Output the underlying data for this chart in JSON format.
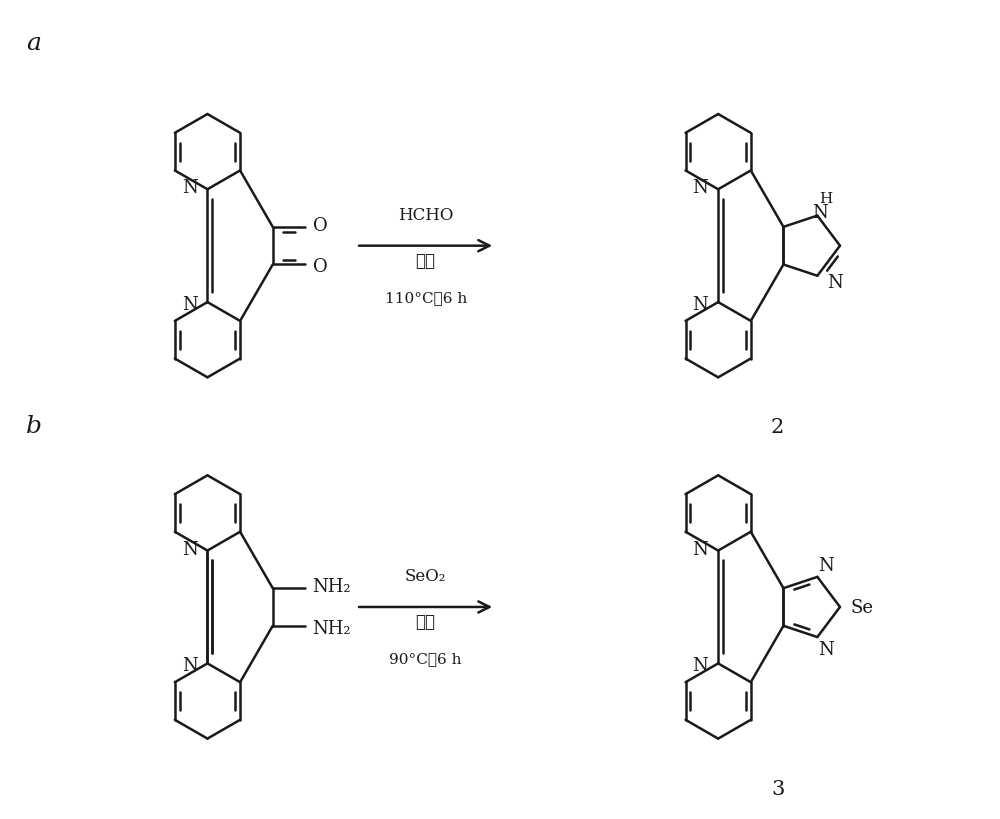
{
  "bg_color": "#ffffff",
  "line_color": "#1a1a1a",
  "label_a": "a",
  "label_b": "b",
  "label_2": "2",
  "label_3": "3",
  "reaction_a_above": "HCHO",
  "reaction_a_below1": "乙酸",
  "reaction_a_below2": "110°C，6 h",
  "reaction_b_above": "SeO₂",
  "reaction_b_below1": "乙醇",
  "reaction_b_below2": "90°C，6 h",
  "figsize": [
    10.0,
    8.2
  ],
  "dpi": 100
}
